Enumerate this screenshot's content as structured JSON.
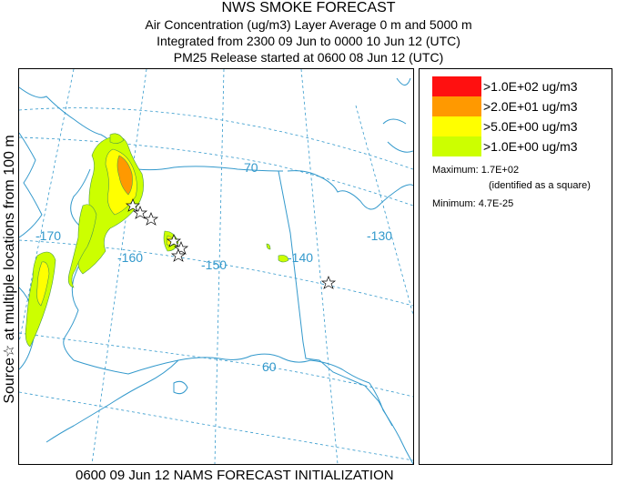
{
  "title": {
    "line1": "NWS SMOKE FORECAST",
    "line2": "Air Concentration (ug/m3) Layer Average    0 m and  5000 m",
    "line3": "Integrated from 2300 09 Jun to 0000 10 Jun 12 (UTC)",
    "line4": "PM25 Release started at 0600 08 Jun 12 (UTC)"
  },
  "side_label": "Source☆ at multiple locations  from   100 m",
  "map": {
    "longitude_labels": [
      "-170",
      "-160",
      "-150",
      "-140",
      "-130"
    ],
    "latitude_labels": [
      "70",
      "60"
    ],
    "colors": {
      "coastline": "#3399cc",
      "graticule": "#3399cc",
      "boundary": "#3399cc",
      "gt100": "#ff1010",
      "gt20": "#ff9900",
      "gt5": "#ffff00",
      "gt1": "#ccff00"
    }
  },
  "legend": {
    "items": [
      {
        "label": ">1.0E+02 ug/m3",
        "color": "#ff1010"
      },
      {
        "label": ">2.0E+01 ug/m3",
        "color": "#ff9900"
      },
      {
        "label": ">5.0E+00 ug/m3",
        "color": "#ffff00"
      },
      {
        "label": ">1.0E+00 ug/m3",
        "color": "#ccff00"
      }
    ],
    "maximum_label": "Maximum: 1.7E+02",
    "maximum_note": "(identified as a square)",
    "minimum_label": "Minimum: 4.7E-25"
  },
  "footer": "0600 09 Jun 12 NAMS FORECAST INITIALIZATION"
}
